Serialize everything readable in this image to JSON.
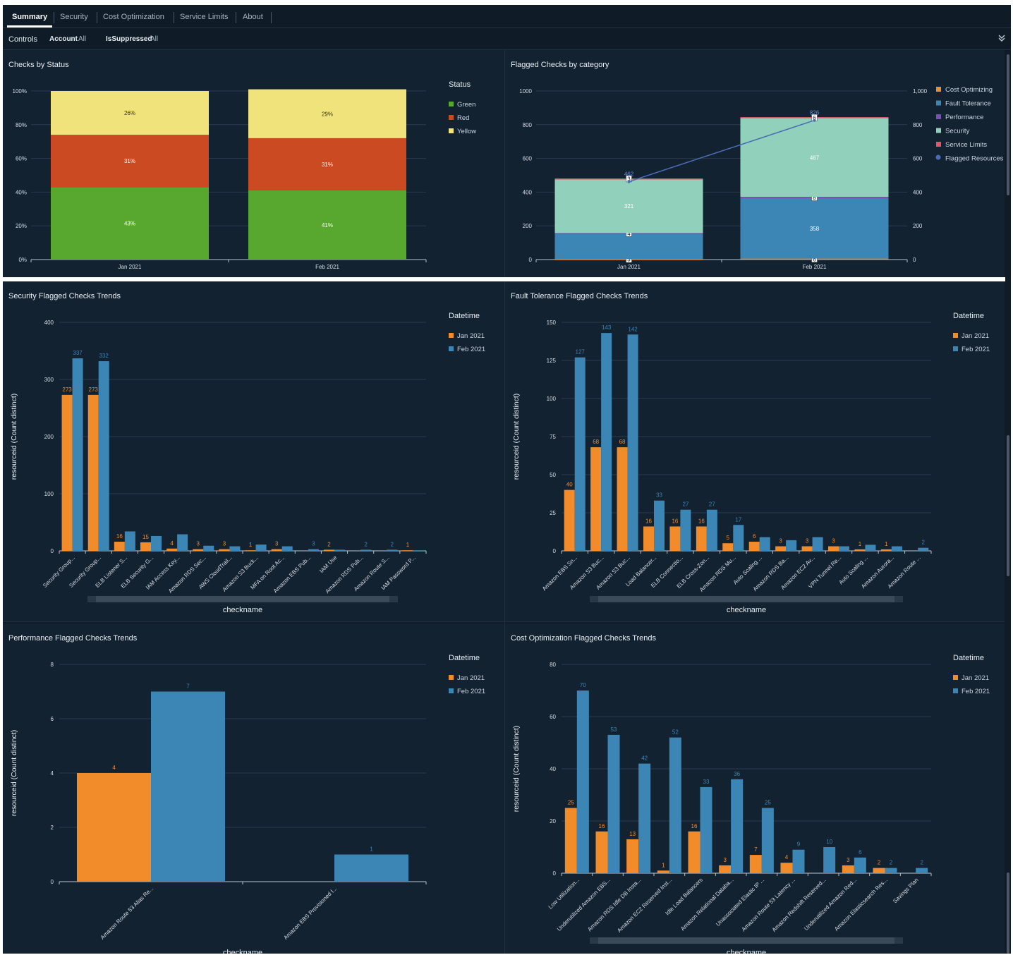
{
  "tabs": [
    "Summary",
    "Security",
    "Cost Optimization",
    "Service Limits",
    "About"
  ],
  "controls": {
    "label": "Controls",
    "account_key": "Account",
    "account_val": "All",
    "suppressed_key": "IsSuppressed",
    "suppressed_val": "All"
  },
  "icons": {
    "collapse": "chevron-down-icon"
  },
  "colors": {
    "green": "#58a72e",
    "red": "#cc4a21",
    "yellow": "#f0e37b",
    "jan": "#f28c2b",
    "feb": "#3b86b4",
    "cost": "#f28c2b",
    "fault": "#3b86b4",
    "performance": "#7b4fb8",
    "security": "#91d0bb",
    "service": "#e2566a",
    "flagged": "#4a6cb5"
  },
  "panels": {
    "status": {
      "title": "Checks by Status"
    },
    "category": {
      "title": "Flagged Checks by category"
    },
    "security": {
      "title": "Security Flagged Checks Trends"
    },
    "fault": {
      "title": "Fault Tolerance Flagged Checks Trends"
    },
    "performance": {
      "title": "Performance Flagged Checks Trends"
    },
    "cost": {
      "title": "Cost Optimization Flagged Checks Trends"
    }
  },
  "chart_data": [
    {
      "id": "status",
      "type": "bar",
      "stacked": "percent",
      "title": "Checks by Status",
      "categories": [
        "Jan 2021",
        "Feb 2021"
      ],
      "series": [
        {
          "name": "Green",
          "values": [
            43,
            41
          ],
          "labels": [
            "43%",
            "41%"
          ]
        },
        {
          "name": "Red",
          "values": [
            31,
            31
          ],
          "labels": [
            "31%",
            "31%"
          ]
        },
        {
          "name": "Yellow",
          "values": [
            26,
            29
          ],
          "labels": [
            "26%",
            "29%"
          ]
        }
      ],
      "yticks": [
        "0%",
        "20%",
        "40%",
        "60%",
        "80%",
        "100%"
      ],
      "legend_title": "Status",
      "legend": [
        "Green",
        "Red",
        "Yellow"
      ]
    },
    {
      "id": "category",
      "type": "bar",
      "stacked": true,
      "title": "Flagged Checks by category",
      "categories": [
        "Jan 2021",
        "Feb 2021"
      ],
      "series": [
        {
          "name": "Cost Optimizing",
          "values": [
            3,
            6
          ],
          "labels": [
            "3",
            "6"
          ]
        },
        {
          "name": "Fault Tolerance",
          "values": [
            150,
            358
          ],
          "labels": [
            "",
            "358"
          ]
        },
        {
          "name": "Performance",
          "values": [
            4,
            8
          ],
          "labels": [
            "4",
            "8"
          ]
        },
        {
          "name": "Security",
          "values": [
            321,
            467
          ],
          "labels": [
            "321",
            "467"
          ]
        },
        {
          "name": "Service Limits",
          "values": [
            3,
            6
          ],
          "labels": [
            "3",
            "6"
          ]
        }
      ],
      "line": {
        "name": "Flagged Resources",
        "values": [
          462,
          826
        ],
        "labels": [
          "462",
          "826"
        ]
      },
      "ylim": [
        0,
        1000
      ],
      "yticks_left": [
        "0",
        "200",
        "400",
        "600",
        "800",
        "1000"
      ],
      "yticks_right": [
        "0",
        "200",
        "400",
        "600",
        "800",
        "1,000"
      ],
      "legend": [
        "Cost Optimizing",
        "Fault Tolerance",
        "Performance",
        "Security",
        "Service Limits",
        "Flagged Resources"
      ]
    },
    {
      "id": "security",
      "type": "bar",
      "title": "Security Flagged Checks Trends",
      "xlabel": "checkname",
      "ylabel": "resourceid (Count distinct)",
      "ylim": [
        0,
        400
      ],
      "yticks": [
        "0",
        "100",
        "200",
        "300",
        "400"
      ],
      "legend_title": "Datetime",
      "legend": [
        "Jan 2021",
        "Feb 2021"
      ],
      "categories": [
        "Security Group...",
        "Security Group...",
        "ELB Listener S...",
        "ELB Security G...",
        "IAM Access Key...",
        "Amazon RDS Sec...",
        "AWS CloudTrail...",
        "Amazon S3 Buck...",
        "MFA on Root Ac...",
        "Amazon EBS Pub...",
        "IAM Use",
        "Amazon RDS Pub...",
        "Amazon Route S...",
        "IAM Password P..."
      ],
      "series": [
        {
          "name": "Jan 2021",
          "values": [
            273,
            273,
            16,
            15,
            4,
            3,
            3,
            1,
            3,
            0,
            2,
            0,
            0,
            1
          ]
        },
        {
          "name": "Feb 2021",
          "values": [
            337,
            332,
            34,
            26,
            29,
            9,
            8,
            11,
            8,
            3,
            2,
            2,
            2,
            1
          ]
        }
      ],
      "data_labels": {
        "jan": [
          "273",
          "273",
          "16",
          "15",
          "4",
          "3",
          "3",
          "1",
          "3",
          "",
          "2",
          "",
          "",
          "1"
        ],
        "feb": [
          "337",
          "332",
          "",
          "",
          "",
          "",
          "",
          "",
          "",
          "3",
          "",
          "2",
          "2",
          ""
        ]
      }
    },
    {
      "id": "fault",
      "type": "bar",
      "title": "Fault Tolerance Flagged Checks Trends",
      "xlabel": "checkname",
      "ylabel": "resourceid (Count distinct)",
      "ylim": [
        0,
        150
      ],
      "yticks": [
        "0",
        "25",
        "50",
        "75",
        "100",
        "125",
        "150"
      ],
      "legend_title": "Datetime",
      "legend": [
        "Jan 2021",
        "Feb 2021"
      ],
      "categories": [
        "Amazon EBS Sn...",
        "Amazon S3 Buc...",
        "Amazon S3 Buc...",
        "Load Balancer...",
        "ELB Connectio...",
        "ELB Cross-Zon...",
        "Amazon RDS Mu...",
        "Auto Scaling ...",
        "Amazon RDS Ba...",
        "Amazon EC2 Av...",
        "VPN Tunnel Re...",
        "Auto Scaling ...",
        "Amazon Aurora...",
        "Amazon Route ..."
      ],
      "series": [
        {
          "name": "Jan 2021",
          "values": [
            40,
            68,
            68,
            16,
            16,
            16,
            5,
            6,
            3,
            3,
            3,
            1,
            1,
            0
          ]
        },
        {
          "name": "Feb 2021",
          "values": [
            127,
            143,
            142,
            33,
            27,
            27,
            17,
            9,
            7,
            9,
            3,
            4,
            3,
            2
          ]
        }
      ],
      "data_labels": {
        "jan": [
          "40",
          "68",
          "68",
          "16",
          "16",
          "16",
          "5",
          "6",
          "3",
          "3",
          "3",
          "1",
          "1",
          ""
        ],
        "feb": [
          "127",
          "143",
          "142",
          "33",
          "27",
          "27",
          "17",
          "",
          "",
          "",
          "",
          "",
          "",
          "2"
        ]
      }
    },
    {
      "id": "performance",
      "type": "bar",
      "title": "Performance Flagged Checks Trends",
      "xlabel": "checkname",
      "ylabel": "resourceid (Count distinct)",
      "ylim": [
        0,
        8
      ],
      "yticks": [
        "0",
        "2",
        "4",
        "6",
        "8"
      ],
      "legend_title": "Datetime",
      "legend": [
        "Jan 2021",
        "Feb 2021"
      ],
      "categories": [
        "Amazon Route 53 Alias Re...",
        "Amazon EBS Provisioned I..."
      ],
      "series": [
        {
          "name": "Jan 2021",
          "values": [
            4,
            0
          ]
        },
        {
          "name": "Feb 2021",
          "values": [
            7,
            1
          ]
        }
      ],
      "data_labels": {
        "jan": [
          "4",
          ""
        ],
        "feb": [
          "7",
          "1"
        ]
      }
    },
    {
      "id": "cost",
      "type": "bar",
      "title": "Cost Optimization Flagged Checks Trends",
      "xlabel": "checkname",
      "ylabel": "resourceid (Count distinct)",
      "ylim": [
        0,
        80
      ],
      "yticks": [
        "0",
        "20",
        "40",
        "60",
        "80"
      ],
      "legend_title": "Datetime",
      "legend": [
        "Jan 2021",
        "Feb 2021"
      ],
      "categories": [
        "Low Utilization...",
        "Underutilized Amazon EBS...",
        "Amazon RDS Idle DB Insta...",
        "Amazon EC2 Reserved Inst...",
        "Idle Load Balancers",
        "Amazon Relational Databa...",
        "Unassociated Elastic IP ...",
        "Amazon Route 53 Latency ...",
        "Amazon Redshift Reserved...",
        "Underutilized Amazon Red...",
        "Amazon Elasticsearch Res...",
        "Savings Plan"
      ],
      "series": [
        {
          "name": "Jan 2021",
          "values": [
            25,
            16,
            13,
            1,
            16,
            3,
            7,
            4,
            0,
            3,
            2,
            0
          ]
        },
        {
          "name": "Feb 2021",
          "values": [
            70,
            53,
            42,
            52,
            33,
            36,
            25,
            9,
            10,
            6,
            2,
            2
          ]
        }
      ],
      "data_labels": {
        "jan": [
          "25",
          "16",
          "13",
          "1",
          "16",
          "3",
          "7",
          "4",
          "",
          "3",
          "2",
          ""
        ],
        "feb": [
          "70",
          "53",
          "42",
          "52",
          "33",
          "36",
          "25",
          "9",
          "10",
          "6",
          "2",
          "2"
        ]
      }
    }
  ]
}
